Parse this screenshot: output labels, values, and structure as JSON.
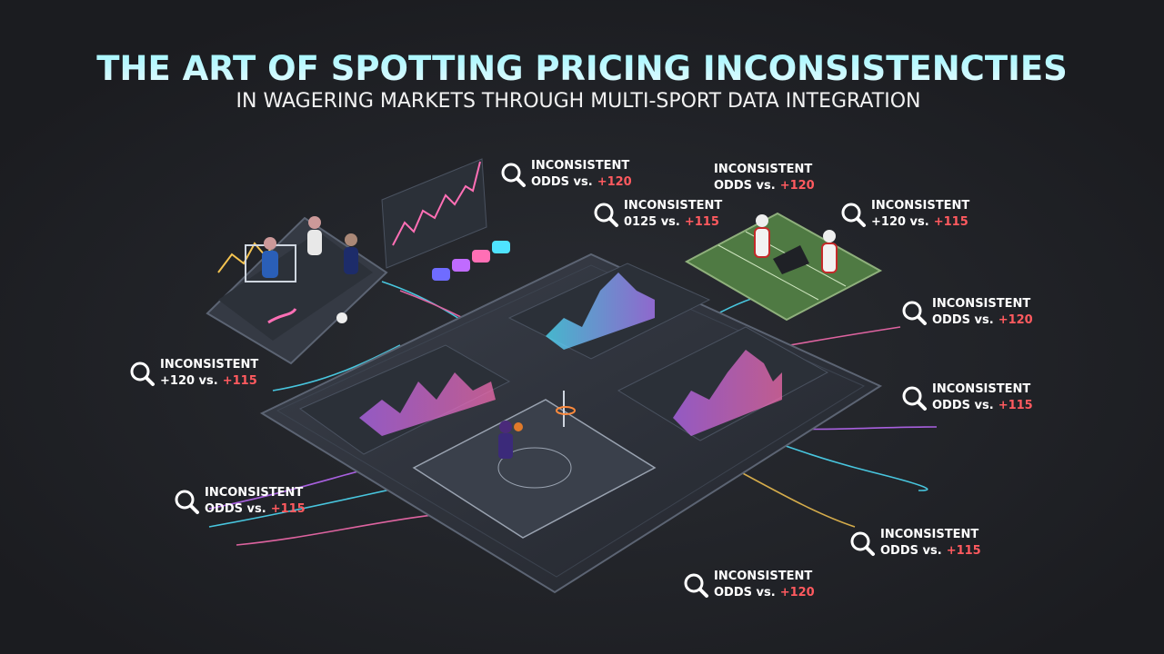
{
  "header": {
    "title": "THE ART OF SPOTTING PRICING INCONSISTENCTIES",
    "subtitle": "IN WAGERING MARKETS THROUGH MULTI-SPORT DATA INTEGRATION"
  },
  "callouts": [
    {
      "line1": "INCONSISTENT",
      "lead": "ODDS vs.",
      "odds": "+120"
    },
    {
      "line1": "INCONSISTENT",
      "lead": "0125 vs.",
      "odds": "+115"
    },
    {
      "line1": "INCONSISTENT",
      "lead": "ODDS vs.",
      "odds": "+120"
    },
    {
      "line1": "INCONSISTENT",
      "lead": "+120 vs.",
      "odds": "+115"
    },
    {
      "line1": "INCONSISTENT",
      "lead": "ODDS vs.",
      "odds": "+120"
    },
    {
      "line1": "INCONSISTENT",
      "lead": "+120 vs.",
      "odds": "+115"
    },
    {
      "line1": "INCONSISTENT",
      "lead": "ODDS vs.",
      "odds": "+115"
    },
    {
      "line1": "INCONSISTENT",
      "lead": "ODDS vs.",
      "odds": "+115"
    },
    {
      "line1": "INCONSISTENT",
      "lead": "ODDS vs.",
      "odds": "+115"
    },
    {
      "line1": "INCONSISTENT",
      "lead": "ODDS vs.",
      "odds": "+120"
    }
  ]
}
